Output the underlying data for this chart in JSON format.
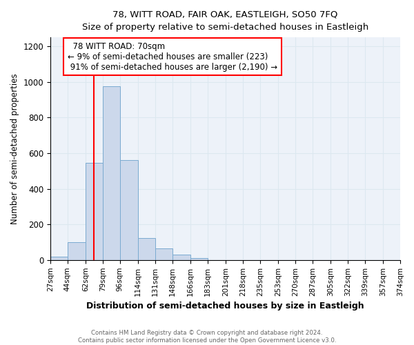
{
  "title": "78, WITT ROAD, FAIR OAK, EASTLEIGH, SO50 7FQ",
  "subtitle": "Size of property relative to semi-detached houses in Eastleigh",
  "xlabel": "Distribution of semi-detached houses by size in Eastleigh",
  "ylabel": "Number of semi-detached properties",
  "bin_labels": [
    "27sqm",
    "44sqm",
    "62sqm",
    "79sqm",
    "96sqm",
    "114sqm",
    "131sqm",
    "148sqm",
    "166sqm",
    "183sqm",
    "201sqm",
    "218sqm",
    "235sqm",
    "253sqm",
    "270sqm",
    "287sqm",
    "305sqm",
    "322sqm",
    "339sqm",
    "357sqm",
    "374sqm"
  ],
  "bar_heights": [
    20,
    100,
    545,
    975,
    560,
    125,
    65,
    30,
    10,
    0,
    0,
    0,
    0,
    0,
    0,
    0,
    0,
    0,
    0,
    0
  ],
  "bar_color": "#ccd8eb",
  "bar_edge_color": "#7aaad0",
  "property_label": "78 WITT ROAD: 70sqm",
  "pct_smaller": 9,
  "pct_larger": 91,
  "n_smaller": 223,
  "n_larger": 2190,
  "vline_x": 70,
  "ylim": [
    0,
    1250
  ],
  "yticks": [
    0,
    200,
    400,
    600,
    800,
    1000,
    1200
  ],
  "grid_color": "#dce8f0",
  "background_color": "#edf2f9",
  "footnote1": "Contains HM Land Registry data © Crown copyright and database right 2024.",
  "footnote2": "Contains public sector information licensed under the Open Government Licence v3.0."
}
